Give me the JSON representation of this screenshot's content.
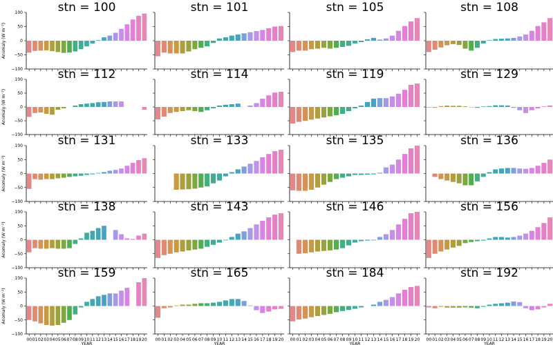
{
  "chart_data": {
    "type": "bar",
    "layout": "small-multiples 5 rows x 4 columns, shared x and y axes",
    "xlabel": "YEAR",
    "ylabel": "Anomaly (W m⁻²)",
    "ylim": [
      -100,
      100
    ],
    "yticks": [
      "100",
      "50",
      "0",
      "−50",
      "−100"
    ],
    "ytick_values": [
      100,
      50,
      0,
      -50,
      -100
    ],
    "categories": [
      "00",
      "01",
      "02",
      "03",
      "04",
      "05",
      "06",
      "07",
      "08",
      "09",
      "10",
      "11",
      "12",
      "13",
      "14",
      "15",
      "16",
      "17",
      "18",
      "19",
      "20"
    ],
    "bar_colors": [
      "#e5868a",
      "#e28971",
      "#d69359",
      "#c89941",
      "#b19d3e",
      "#9aa23f",
      "#7ba93f",
      "#4fb04b",
      "#3fb07e",
      "#40ad93",
      "#41aaa1",
      "#42a8ad",
      "#43a5b9",
      "#46a2c7",
      "#7c9fdf",
      "#a59ae9",
      "#c28fea",
      "#d884e7",
      "#e47ed7",
      "#e67fc6",
      "#e886b4"
    ],
    "panels": [
      {
        "title": "stn = 100",
        "values": [
          -42,
          -36,
          -35,
          -34,
          -37,
          -40,
          -43,
          -42,
          -38,
          -30,
          -20,
          -10,
          2,
          12,
          18,
          28,
          42,
          58,
          75,
          88,
          96
        ]
      },
      {
        "title": "stn = 101",
        "values": [
          -55,
          -42,
          -45,
          -45,
          -45,
          -38,
          -30,
          -25,
          -20,
          -8,
          8,
          12,
          18,
          22,
          26,
          30,
          34,
          38,
          44,
          50,
          52
        ]
      },
      {
        "title": "stn = 105",
        "values": [
          -40,
          -35,
          -35,
          -30,
          -28,
          -25,
          -28,
          -25,
          -22,
          -18,
          -10,
          -5,
          5,
          10,
          4,
          8,
          18,
          35,
          52,
          68,
          80
        ]
      },
      {
        "title": "stn = 108",
        "values": [
          -40,
          -32,
          -24,
          -16,
          -12,
          -15,
          -28,
          -35,
          -25,
          -10,
          2,
          6,
          7,
          8,
          10,
          15,
          22,
          35,
          52,
          65,
          80
        ]
      },
      {
        "title": "stn = 112",
        "values": [
          -36,
          -22,
          -20,
          -25,
          -28,
          -10,
          -5,
          0,
          5,
          10,
          12,
          14,
          17,
          18,
          20,
          20,
          20,
          0,
          0,
          0,
          -10
        ]
      },
      {
        "title": "stn = 114",
        "values": [
          -45,
          -35,
          -22,
          -18,
          -15,
          -12,
          -15,
          -18,
          -12,
          -5,
          5,
          8,
          10,
          12,
          0,
          5,
          14,
          30,
          42,
          52,
          55
        ]
      },
      {
        "title": "stn = 119",
        "values": [
          -60,
          -54,
          -50,
          -46,
          -42,
          -38,
          -34,
          -30,
          -25,
          -15,
          -5,
          5,
          18,
          30,
          32,
          32,
          38,
          48,
          62,
          80,
          85
        ]
      },
      {
        "title": "stn = 129",
        "values": [
          -2,
          -3,
          3,
          5,
          4,
          4,
          2,
          -1,
          -3,
          2,
          3,
          6,
          6,
          5,
          -3,
          -12,
          -22,
          -12,
          -5,
          2,
          5
        ]
      },
      {
        "title": "stn = 131",
        "values": [
          -55,
          -20,
          -22,
          -20,
          -20,
          -17,
          -15,
          -12,
          -10,
          -8,
          -5,
          -3,
          2,
          5,
          10,
          13,
          18,
          28,
          38,
          48,
          55
        ]
      },
      {
        "title": "stn = 133",
        "values": [
          0,
          0,
          0,
          -58,
          -57,
          -56,
          -54,
          -50,
          -46,
          -35,
          -25,
          -10,
          5,
          15,
          25,
          35,
          45,
          58,
          70,
          80,
          85
        ]
      },
      {
        "title": "stn = 135",
        "values": [
          -60,
          -62,
          -62,
          -58,
          -50,
          -40,
          -30,
          -20,
          -15,
          -10,
          -5,
          -5,
          -4,
          -3,
          3,
          22,
          32,
          50,
          70,
          90,
          100
        ]
      },
      {
        "title": "stn = 136",
        "values": [
          0,
          -12,
          -20,
          -25,
          -30,
          -35,
          -42,
          -42,
          -28,
          -12,
          5,
          15,
          18,
          20,
          20,
          18,
          17,
          20,
          28,
          38,
          50
        ]
      },
      {
        "title": "stn = 138",
        "values": [
          -45,
          -30,
          -32,
          -32,
          -30,
          -32,
          -32,
          -30,
          -15,
          5,
          25,
          32,
          42,
          50,
          0,
          35,
          20,
          5,
          3,
          15,
          22
        ]
      },
      {
        "title": "stn = 143",
        "values": [
          -65,
          -55,
          -50,
          -45,
          -42,
          -38,
          -35,
          -32,
          -25,
          -18,
          -10,
          -2,
          10,
          22,
          30,
          42,
          55,
          68,
          80,
          90,
          95
        ]
      },
      {
        "title": "stn = 146",
        "values": [
          0,
          -50,
          -48,
          -45,
          -42,
          -40,
          -38,
          -35,
          -30,
          -20,
          -10,
          -5,
          -3,
          -2,
          10,
          20,
          35,
          55,
          75,
          95,
          100
        ]
      },
      {
        "title": "stn = 156",
        "values": [
          -65,
          -50,
          -42,
          -35,
          -28,
          -22,
          -12,
          -8,
          -5,
          -3,
          5,
          10,
          10,
          8,
          10,
          15,
          22,
          32,
          45,
          60,
          80
        ]
      },
      {
        "title": "stn = 159",
        "values": [
          -50,
          -55,
          -62,
          -68,
          -70,
          -68,
          -60,
          -50,
          -30,
          -5,
          15,
          25,
          35,
          40,
          45,
          45,
          55,
          65,
          0,
          85,
          100
        ]
      },
      {
        "title": "stn = 165",
        "values": [
          -42,
          -8,
          -5,
          2,
          5,
          5,
          8,
          10,
          10,
          12,
          15,
          20,
          25,
          25,
          18,
          2,
          -15,
          -25,
          -20,
          -12,
          -10
        ]
      },
      {
        "title": "stn = 184",
        "values": [
          -55,
          -48,
          -45,
          -40,
          -36,
          -32,
          -28,
          -22,
          -18,
          -14,
          -10,
          -5,
          0,
          5,
          15,
          22,
          32,
          45,
          58,
          68,
          72
        ]
      },
      {
        "title": "stn = 192",
        "values": [
          -5,
          -8,
          -3,
          -6,
          -6,
          -6,
          -5,
          -6,
          -8,
          -3,
          5,
          8,
          10,
          12,
          16,
          14,
          -8,
          -15,
          -12,
          -5,
          8
        ]
      }
    ]
  }
}
